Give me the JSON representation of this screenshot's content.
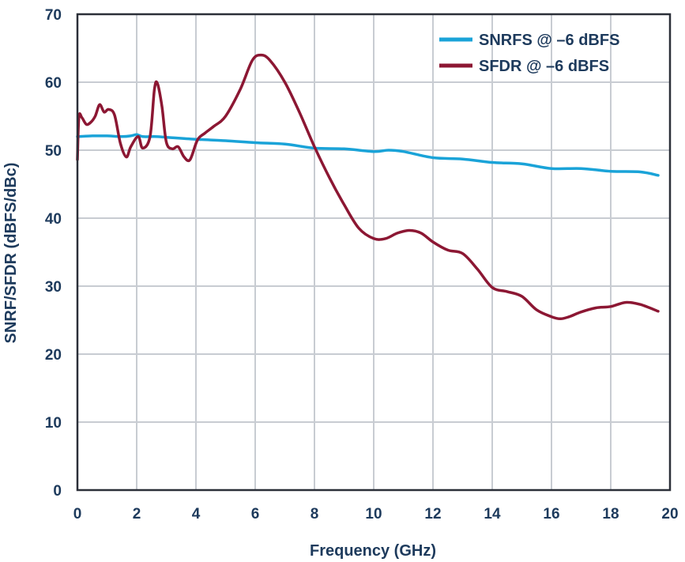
{
  "chart_data": {
    "type": "line",
    "title": "",
    "xlabel": "Frequency (GHz)",
    "ylabel": "SNRF/SFDR (dBFS/dBc)",
    "xlim": [
      0,
      20
    ],
    "ylim": [
      0,
      70
    ],
    "x_ticks": [
      "0",
      "2",
      "4",
      "6",
      "8",
      "10",
      "12",
      "14",
      "16",
      "18",
      "20"
    ],
    "y_ticks": [
      "0",
      "10",
      "20",
      "30",
      "40",
      "50",
      "60",
      "70"
    ],
    "grid": true,
    "legend_position": "top-right",
    "series": [
      {
        "name": "SNRFS @ –6 dBFS",
        "color": "#1aa3d8",
        "x": [
          0,
          0.5,
          1.0,
          1.5,
          1.8,
          2.0,
          2.2,
          2.6,
          3.0,
          4.0,
          5.0,
          6.0,
          7.0,
          8.0,
          9.0,
          10.0,
          10.5,
          11.0,
          12.0,
          13.0,
          14.0,
          15.0,
          16.0,
          17.0,
          18.0,
          19.0,
          19.6
        ],
        "y": [
          52.0,
          52.1,
          52.1,
          52.0,
          52.1,
          52.3,
          52.0,
          52.0,
          51.9,
          51.6,
          51.4,
          51.1,
          50.9,
          50.3,
          50.2,
          49.8,
          50.0,
          49.8,
          48.9,
          48.7,
          48.2,
          48.0,
          47.3,
          47.3,
          46.9,
          46.8,
          46.3
        ]
      },
      {
        "name": "SFDR @ –6 dBFS",
        "color": "#8c1733",
        "x": [
          0,
          0.05,
          0.15,
          0.3,
          0.45,
          0.6,
          0.75,
          0.9,
          1.05,
          1.25,
          1.45,
          1.65,
          1.8,
          2.05,
          2.2,
          2.45,
          2.6,
          2.7,
          2.85,
          3.0,
          3.2,
          3.4,
          3.6,
          3.8,
          4.05,
          4.3,
          4.6,
          5.0,
          5.5,
          5.9,
          6.2,
          6.5,
          7.0,
          7.5,
          8.0,
          8.5,
          9.0,
          9.5,
          10.0,
          10.4,
          10.8,
          11.2,
          11.6,
          12.0,
          12.5,
          13.0,
          13.5,
          14.0,
          14.5,
          15.0,
          15.5,
          16.0,
          16.3,
          16.6,
          17.0,
          17.5,
          18.0,
          18.5,
          19.0,
          19.6
        ],
        "y": [
          48.6,
          54.9,
          54.8,
          53.8,
          54.1,
          55.0,
          56.7,
          55.6,
          56.0,
          55.2,
          51.0,
          49.0,
          50.5,
          52.0,
          50.3,
          52.0,
          59.0,
          59.8,
          56.5,
          51.2,
          50.2,
          50.5,
          49.0,
          48.6,
          51.5,
          52.5,
          53.5,
          55.0,
          59.0,
          63.2,
          64.0,
          63.2,
          60.0,
          55.5,
          50.5,
          46.0,
          42.0,
          38.5,
          37.0,
          37.0,
          37.8,
          38.2,
          37.8,
          36.5,
          35.3,
          34.8,
          32.5,
          29.8,
          29.2,
          28.5,
          26.5,
          25.5,
          25.2,
          25.5,
          26.2,
          26.8,
          27.0,
          27.6,
          27.3,
          26.3
        ]
      }
    ]
  }
}
